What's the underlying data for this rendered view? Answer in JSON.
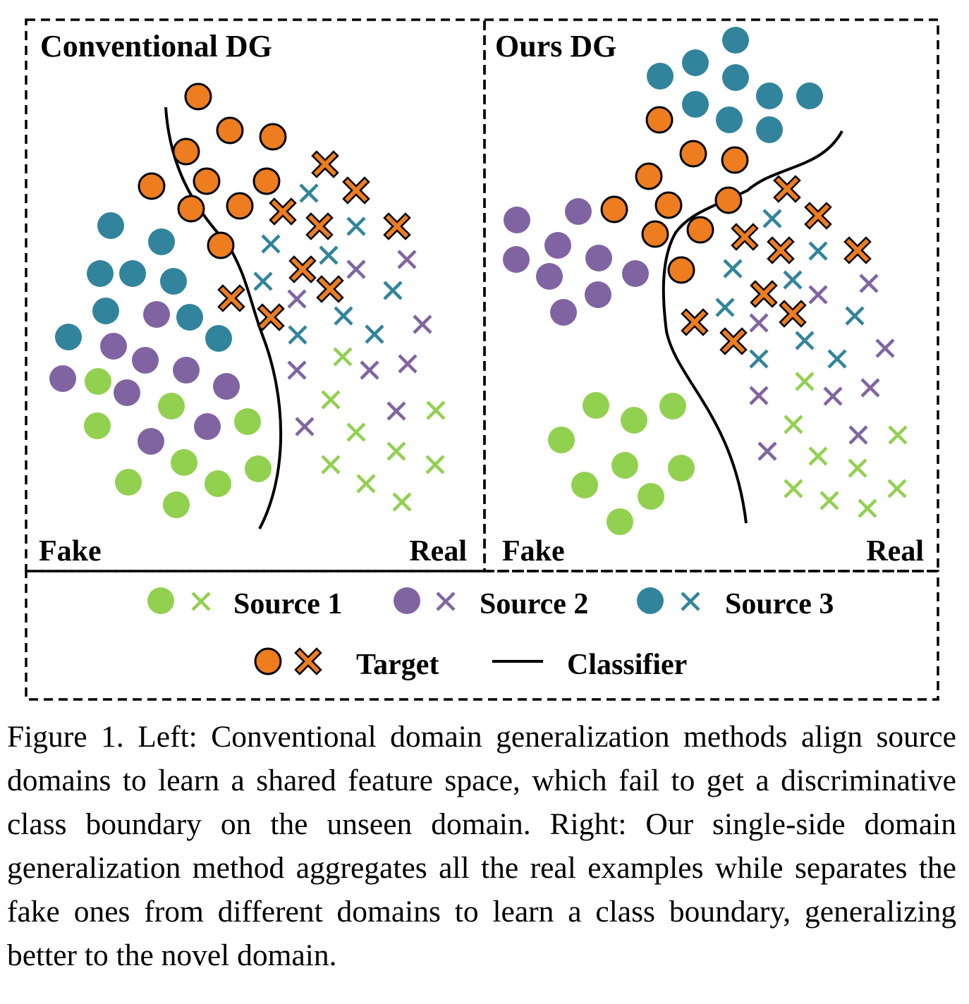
{
  "figure": {
    "panels": [
      {
        "title": "Conventional DG",
        "fake_label": "Fake",
        "real_label": "Real"
      },
      {
        "title": "Ours DG",
        "fake_label": "Fake",
        "real_label": "Real"
      }
    ],
    "legend": [
      {
        "label": "Source 1",
        "color": "#92d050",
        "marker": "circle-and-cross"
      },
      {
        "label": "Source 2",
        "color": "#8064a2",
        "marker": "circle-and-cross"
      },
      {
        "label": "Source 3",
        "color": "#31849b",
        "marker": "circle-and-cross"
      },
      {
        "label": "Target",
        "color": "#ed7d1f",
        "marker": "outlined-circle-and-cross"
      },
      {
        "label": "Classifier",
        "color": "#000000",
        "marker": "line"
      }
    ],
    "colors": {
      "source1": "#92d050",
      "source2": "#8064a2",
      "source3": "#31849b",
      "target": "#ed7d1f",
      "outline": "#000000"
    }
  },
  "caption": "Figure 1. Left: Conventional domain generalization methods align source domains to learn a shared feature space, which fail to get a discriminative class boundary on the unseen domain. Right: Our single-side domain generalization method aggregates all the real examples while separates the fake ones from different domains to learn a class boundary, generalizing better to the novel domain."
}
